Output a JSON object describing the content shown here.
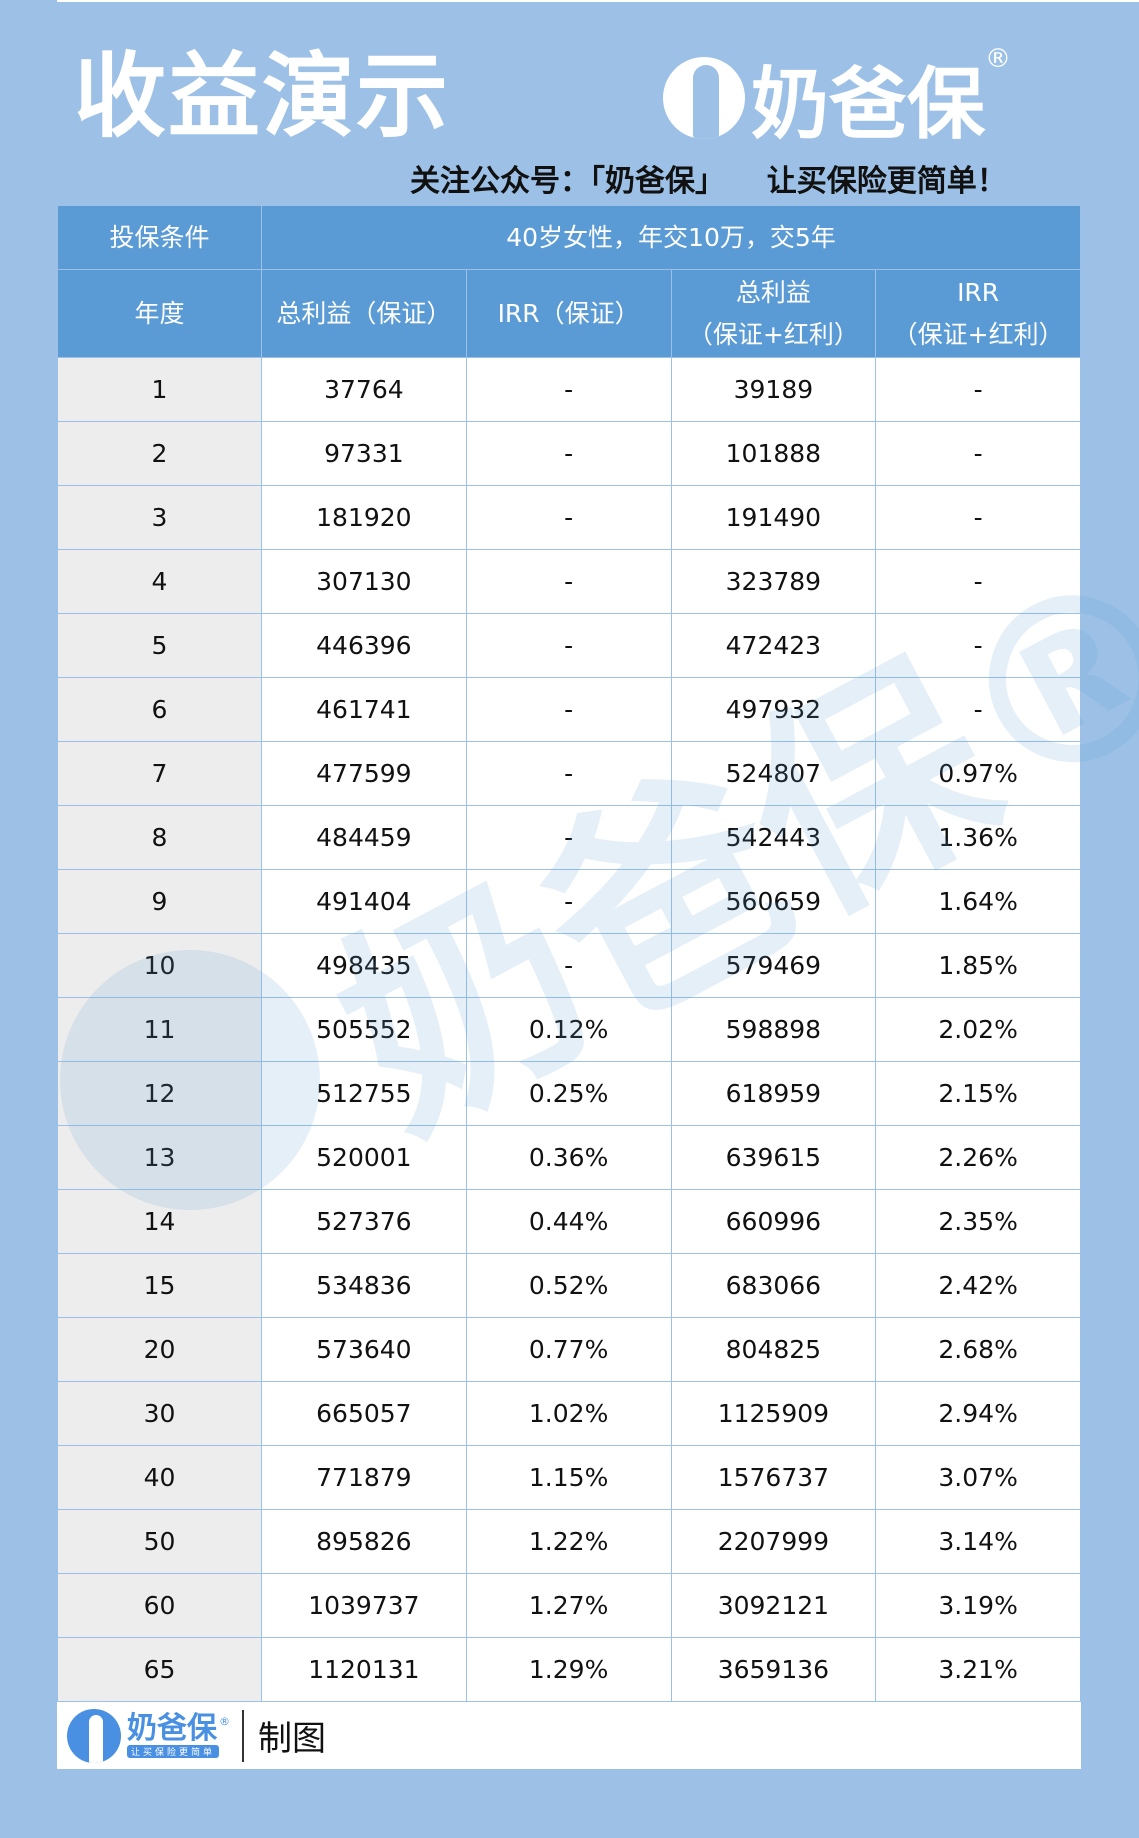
{
  "header": {
    "title": "收益演示",
    "brand": "奶爸保",
    "reg": "®",
    "slogan": "关注公众号：「奶爸保」    让买保险更简单！"
  },
  "table": {
    "cond_label": "投保条件",
    "cond_value": "40岁女性，年交10万，交5年",
    "columns": [
      "年度",
      "总利益（保证）",
      "IRR（保证）",
      "总利益（保证+红利）",
      "IRR（保证+红利）"
    ],
    "col3_line1": "总利益",
    "col3_line2": "（保证+红利）",
    "col4_line1": "IRR",
    "col4_line2": "（保证+红利）",
    "rows": [
      [
        "1",
        "37764",
        "-",
        "39189",
        "-"
      ],
      [
        "2",
        "97331",
        "-",
        "101888",
        "-"
      ],
      [
        "3",
        "181920",
        "-",
        "191490",
        "-"
      ],
      [
        "4",
        "307130",
        "-",
        "323789",
        "-"
      ],
      [
        "5",
        "446396",
        "-",
        "472423",
        "-"
      ],
      [
        "6",
        "461741",
        "-",
        "497932",
        "-"
      ],
      [
        "7",
        "477599",
        "-",
        "524807",
        "0.97%"
      ],
      [
        "8",
        "484459",
        "-",
        "542443",
        "1.36%"
      ],
      [
        "9",
        "491404",
        "-",
        "560659",
        "1.64%"
      ],
      [
        "10",
        "498435",
        "-",
        "579469",
        "1.85%"
      ],
      [
        "11",
        "505552",
        "0.12%",
        "598898",
        "2.02%"
      ],
      [
        "12",
        "512755",
        "0.25%",
        "618959",
        "2.15%"
      ],
      [
        "13",
        "520001",
        "0.36%",
        "639615",
        "2.26%"
      ],
      [
        "14",
        "527376",
        "0.44%",
        "660996",
        "2.35%"
      ],
      [
        "15",
        "534836",
        "0.52%",
        "683066",
        "2.42%"
      ],
      [
        "20",
        "573640",
        "0.77%",
        "804825",
        "2.68%"
      ],
      [
        "30",
        "665057",
        "1.02%",
        "1125909",
        "2.94%"
      ],
      [
        "40",
        "771879",
        "1.15%",
        "1576737",
        "3.07%"
      ],
      [
        "50",
        "895826",
        "1.22%",
        "2207999",
        "3.14%"
      ],
      [
        "60",
        "1039737",
        "1.27%",
        "3092121",
        "3.19%"
      ],
      [
        "65",
        "1120131",
        "1.29%",
        "3659136",
        "3.21%"
      ]
    ]
  },
  "footer": {
    "brand": "奶爸保",
    "tagline": "让买保险更简单",
    "reg": "®",
    "made": "制图"
  },
  "watermark": "奶爸保®",
  "colors": {
    "background": "#9dc1e6",
    "header": "#5b9bd5",
    "brand": "#4a90e2",
    "year_col": "#ededed"
  }
}
